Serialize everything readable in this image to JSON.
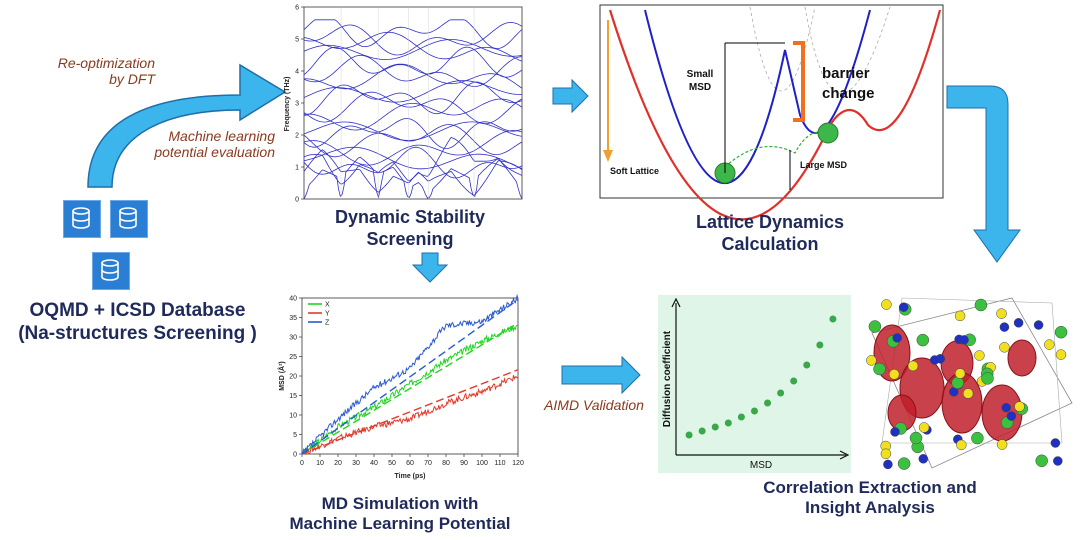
{
  "colors": {
    "title": "#1f2a5a",
    "arrow": "#3cb4ec",
    "italic": "#8a3a1f",
    "db": "#2a7fd4"
  },
  "database": {
    "line1": "OQMD + ICSD Database",
    "line2": "(Na-structures Screening )"
  },
  "labels": {
    "reopt_line1": "Re-optimization",
    "reopt_line2": "by DFT",
    "ml_line1": "Machine learning",
    "ml_line2": "potential evaluation",
    "aimd": "AIMD Validation"
  },
  "stages": {
    "dynamic_line1": "Dynamic Stability",
    "dynamic_line2": "Screening",
    "lattice_line1": "Lattice Dynamics",
    "lattice_line2": "Calculation",
    "md_line1": "MD Simulation with",
    "md_line2": "Machine Learning Potential",
    "corr_line1": "Correlation Extraction and",
    "corr_line2": "Insight Analysis"
  },
  "lattice_panel": {
    "small_msd_1": "Small",
    "small_msd_2": "MSD",
    "barrier_1": "barrier",
    "barrier_2": "change",
    "soft_lattice": "Soft Lattice",
    "large_msd": "Large MSD"
  },
  "chart_data": [
    {
      "type": "line",
      "title": "",
      "xlabel": "",
      "ylabel": "Frequency (THz)",
      "ylim": [
        0,
        6
      ],
      "yticks": [
        "0",
        "1",
        "2",
        "3",
        "4",
        "5",
        "6"
      ],
      "description_series": "phonon band structure (~20 bands)",
      "series_count": 20
    },
    {
      "type": "line",
      "title": "",
      "xlabel": "Time (ps)",
      "ylabel": "MSD (Å²)",
      "xlim": [
        0,
        120
      ],
      "ylim": [
        0,
        40
      ],
      "xticks": [
        "0",
        "10",
        "20",
        "30",
        "40",
        "50",
        "60",
        "70",
        "80",
        "90",
        "100",
        "110",
        "120"
      ],
      "yticks": [
        "0",
        "5",
        "10",
        "15",
        "20",
        "25",
        "30",
        "35",
        "40"
      ],
      "legend": [
        "X",
        "Y",
        "Z"
      ],
      "series": [
        {
          "name": "X",
          "color": "#22d422",
          "x": [
            0,
            20,
            40,
            60,
            80,
            100,
            120
          ],
          "values": [
            0,
            7,
            12,
            18,
            24,
            29,
            33
          ],
          "fit_slope": 0.28
        },
        {
          "name": "Y",
          "color": "#e03a2a",
          "x": [
            0,
            20,
            40,
            60,
            80,
            100,
            120
          ],
          "values": [
            0,
            4,
            7,
            9,
            13,
            16,
            20
          ],
          "fit_slope": 0.18
        },
        {
          "name": "Z",
          "color": "#2a5ad4",
          "x": [
            0,
            20,
            40,
            60,
            80,
            100,
            120
          ],
          "values": [
            0,
            9,
            17,
            22,
            33,
            34,
            40
          ],
          "fit_slope": 0.33
        }
      ]
    },
    {
      "type": "scatter",
      "title": "",
      "xlabel": "MSD",
      "ylabel": "Diffusion coefficient",
      "x": [
        1,
        2,
        3,
        4,
        5,
        6,
        7,
        8,
        9,
        10,
        11,
        12
      ],
      "values": [
        1.0,
        1.2,
        1.4,
        1.6,
        1.9,
        2.2,
        2.6,
        3.1,
        3.7,
        4.5,
        5.5,
        6.8
      ]
    }
  ]
}
